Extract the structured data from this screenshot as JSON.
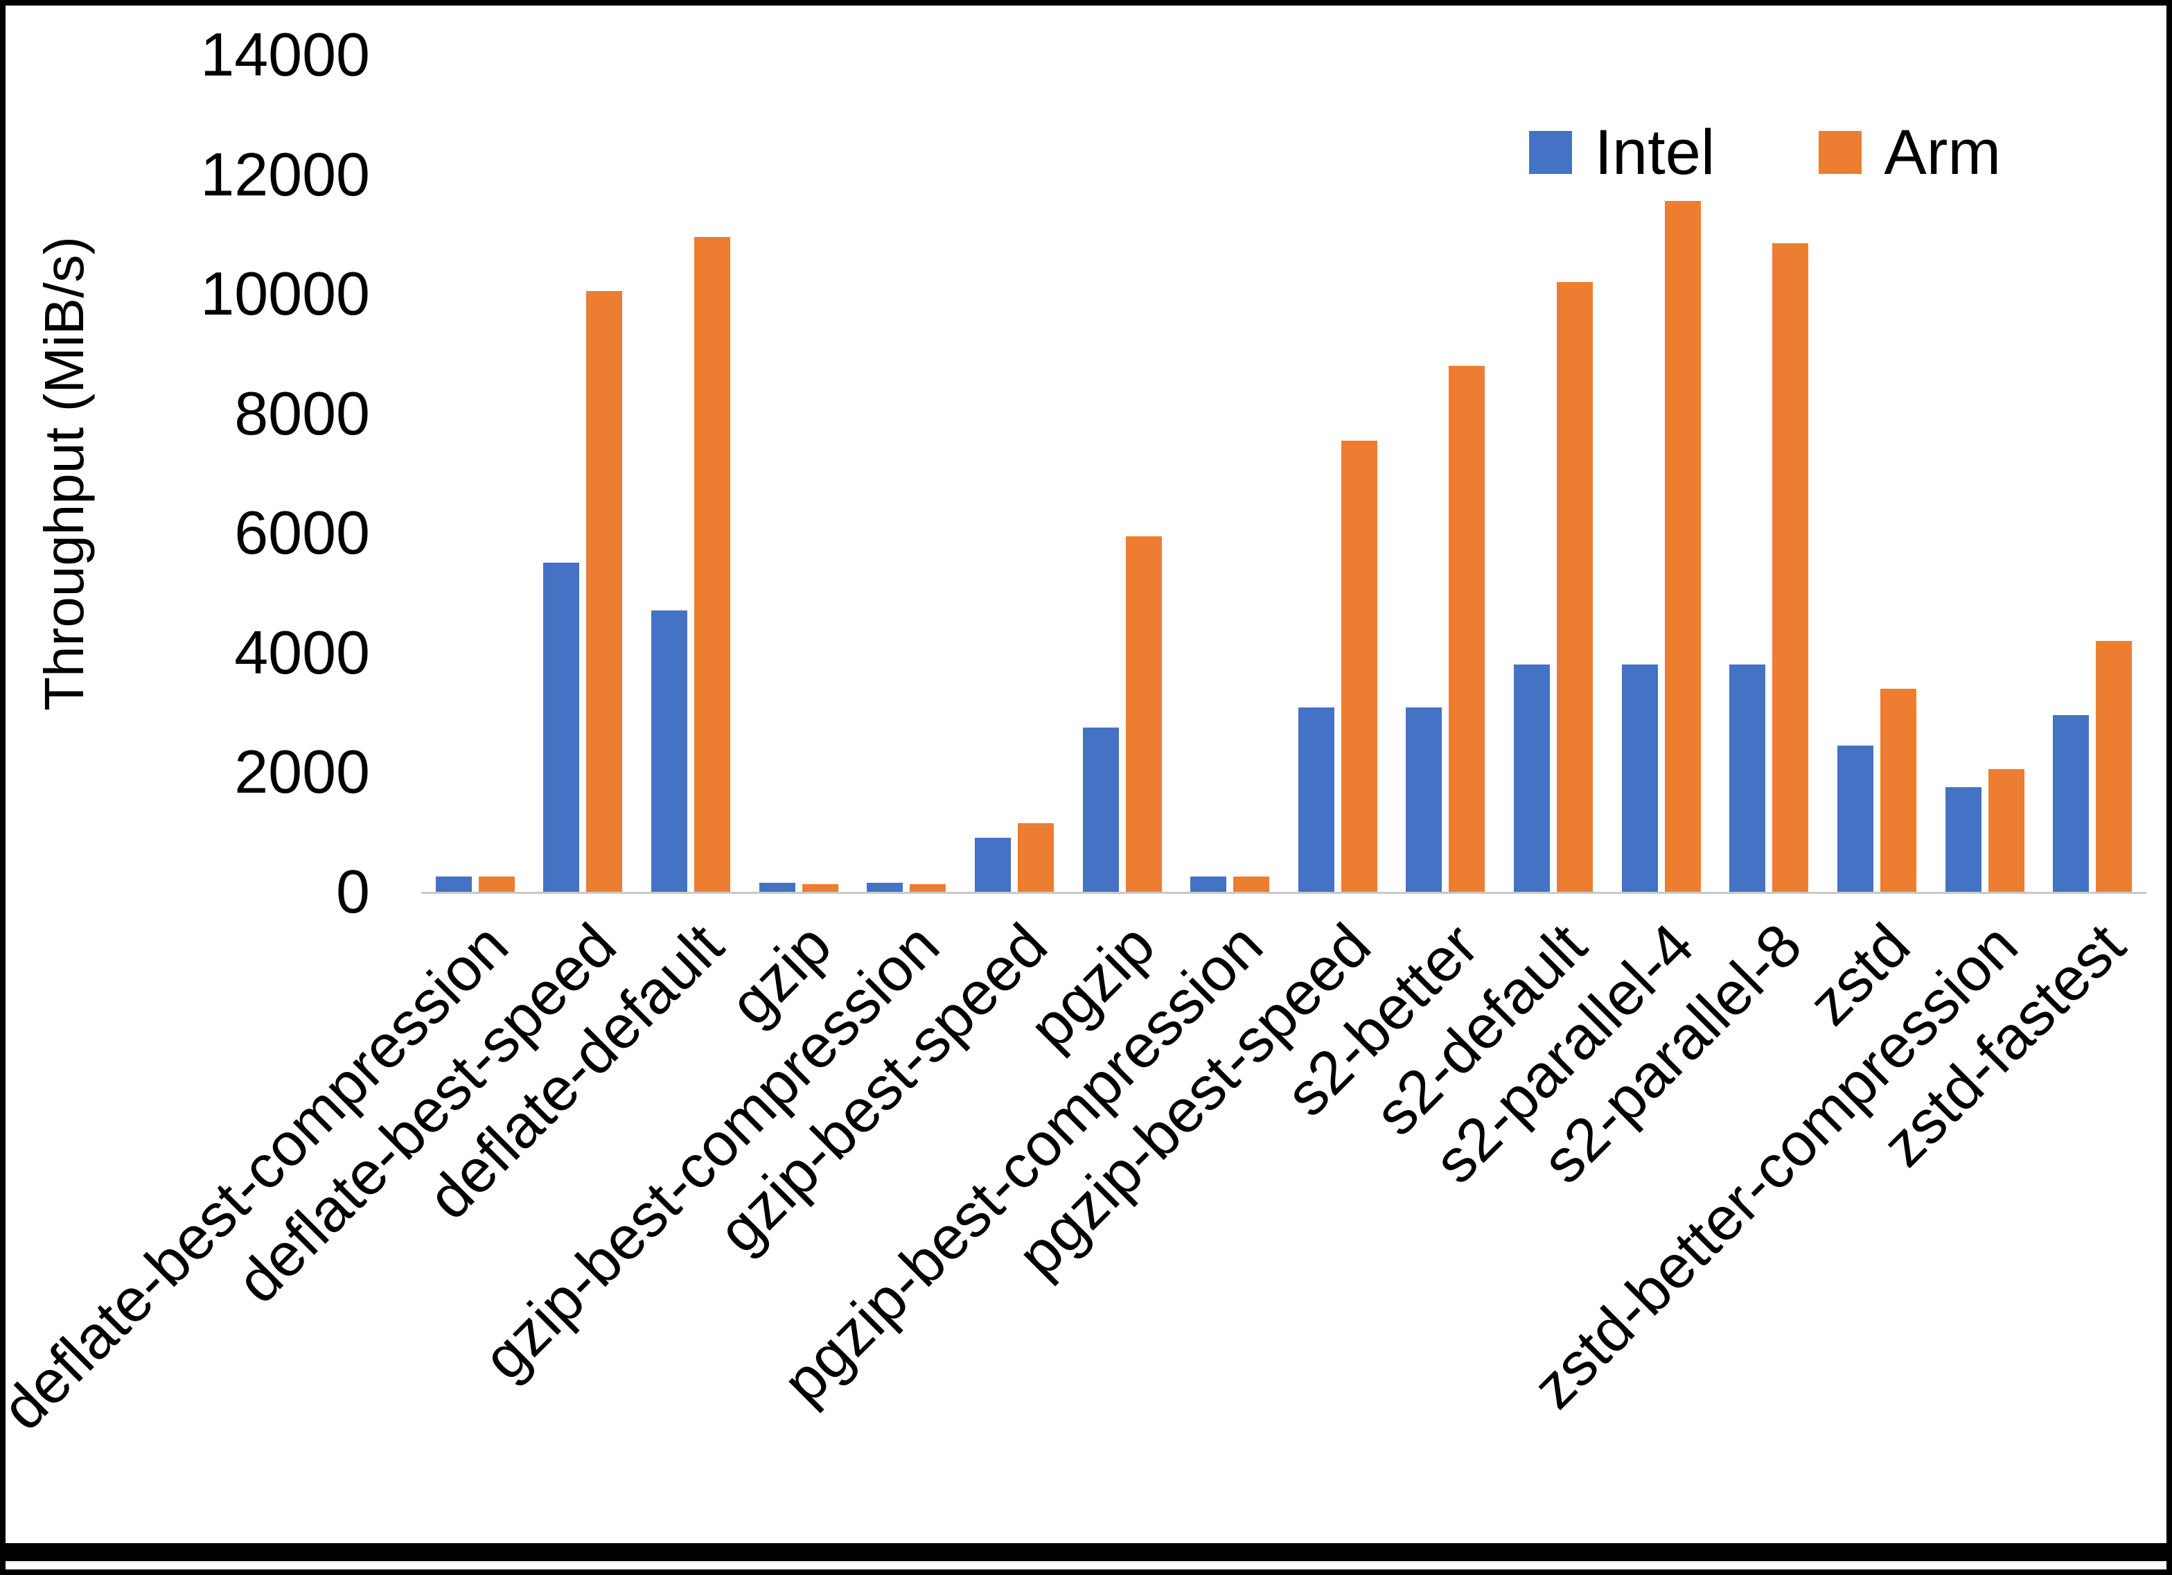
{
  "chart_data": {
    "type": "bar",
    "title": "",
    "xlabel": "",
    "ylabel": "Throughput (MiB/s)",
    "ylim": [
      0,
      14000
    ],
    "yticks": [
      0,
      2000,
      4000,
      6000,
      8000,
      10000,
      12000,
      14000
    ],
    "grid": false,
    "legend_position": "top-right",
    "categories": [
      "deflate-best-compression",
      "deflate-best-speed",
      "deflate-default",
      "gzip",
      "gzip-best-compression",
      "gzip-best-speed",
      "pgzip",
      "pgzip-best-compression",
      "pgzip-best-speed",
      "s2-better",
      "s2-default",
      "s2-parallel-4",
      "s2-parallel-8",
      "zstd",
      "zstd-better-compression",
      "zstd-fastest"
    ],
    "series": [
      {
        "name": "Intel",
        "color": "#4472C4",
        "values": [
          260,
          5500,
          4700,
          150,
          150,
          900,
          2750,
          250,
          3080,
          3080,
          3800,
          3800,
          3800,
          2450,
          1750,
          2950
        ]
      },
      {
        "name": "Arm",
        "color": "#ED7D31",
        "values": [
          250,
          10050,
          10950,
          130,
          130,
          1150,
          5950,
          260,
          7550,
          8800,
          10200,
          11550,
          10850,
          3400,
          2050,
          4200
        ]
      }
    ]
  }
}
